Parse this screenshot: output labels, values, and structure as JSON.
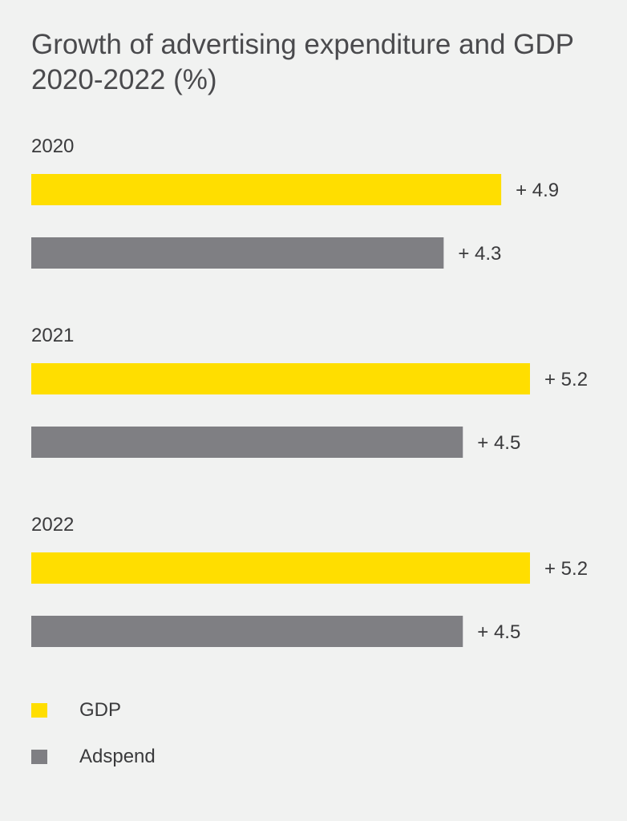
{
  "title": "Growth of advertising expenditure and GDP 2020-2022 (%)",
  "colors": {
    "gdp": "#ffde00",
    "adspend": "#7f7f83",
    "background": "#f1f2f1",
    "text": "#3a3a3c"
  },
  "chart_data": {
    "type": "bar",
    "orientation": "horizontal",
    "title": "Growth of advertising expenditure and GDP 2020-2022 (%)",
    "categories": [
      "2020",
      "2021",
      "2022"
    ],
    "series": [
      {
        "name": "GDP",
        "values": [
          4.9,
          5.2,
          5.2
        ],
        "labels": [
          "+ 4.9",
          "+ 5.2",
          "+ 5.2"
        ]
      },
      {
        "name": "Adspend",
        "values": [
          4.3,
          4.5,
          4.5
        ],
        "labels": [
          "+ 4.3",
          "+ 4.5",
          "+ 4.5"
        ]
      }
    ],
    "xlim": [
      0,
      5.2
    ],
    "grid": false,
    "legend": "bottom-left"
  },
  "legend": {
    "items": [
      {
        "label": "GDP"
      },
      {
        "label": "Adspend"
      }
    ]
  }
}
